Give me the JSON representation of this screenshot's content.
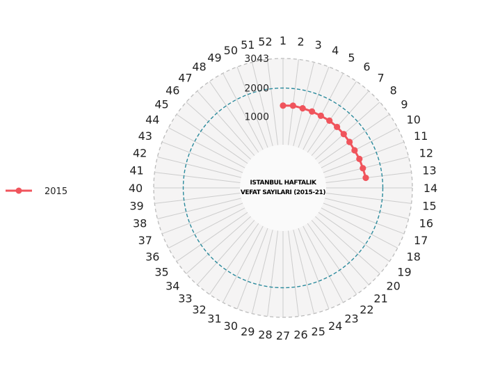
{
  "chart_data": {
    "type": "line",
    "coordinate_system": "polar",
    "title_lines": [
      "ISTANBUL HAFTALIK",
      "VEFAT SAYILARI (2015-21)"
    ],
    "categories": [
      "1",
      "2",
      "3",
      "4",
      "5",
      "6",
      "7",
      "8",
      "9",
      "10",
      "11",
      "12",
      "13",
      "14",
      "15",
      "16",
      "17",
      "18",
      "19",
      "20",
      "21",
      "22",
      "23",
      "24",
      "25",
      "26",
      "27",
      "28",
      "29",
      "30",
      "31",
      "32",
      "33",
      "34",
      "35",
      "36",
      "37",
      "38",
      "39",
      "40",
      "41",
      "42",
      "43",
      "44",
      "45",
      "46",
      "47",
      "48",
      "49",
      "50",
      "51",
      "52"
    ],
    "radial_ticks": [
      {
        "value": 1000,
        "label": "1000"
      },
      {
        "value": 2000,
        "label": "2000"
      },
      {
        "value": 3043,
        "label": "3043"
      }
    ],
    "rlim": [
      0,
      3043
    ],
    "reference_circle": 2000,
    "series": [
      {
        "name": "2015",
        "color": "#f0545c",
        "x": [
          "1",
          "2",
          "3",
          "4",
          "5",
          "6",
          "7",
          "8",
          "9",
          "10",
          "11",
          "12",
          "13"
        ],
        "values": [
          1380,
          1400,
          1370,
          1360,
          1350,
          1360,
          1350,
          1340,
          1330,
          1330,
          1360,
          1380,
          1420
        ]
      }
    ],
    "legend_position": "left"
  },
  "colors": {
    "panel_fill": "#f5f4f4",
    "outer_ring": "#bbbbbb",
    "spokes": "#cccccc",
    "reference_circle": "#2a8a9c",
    "inner_fill": "#fafafa"
  }
}
